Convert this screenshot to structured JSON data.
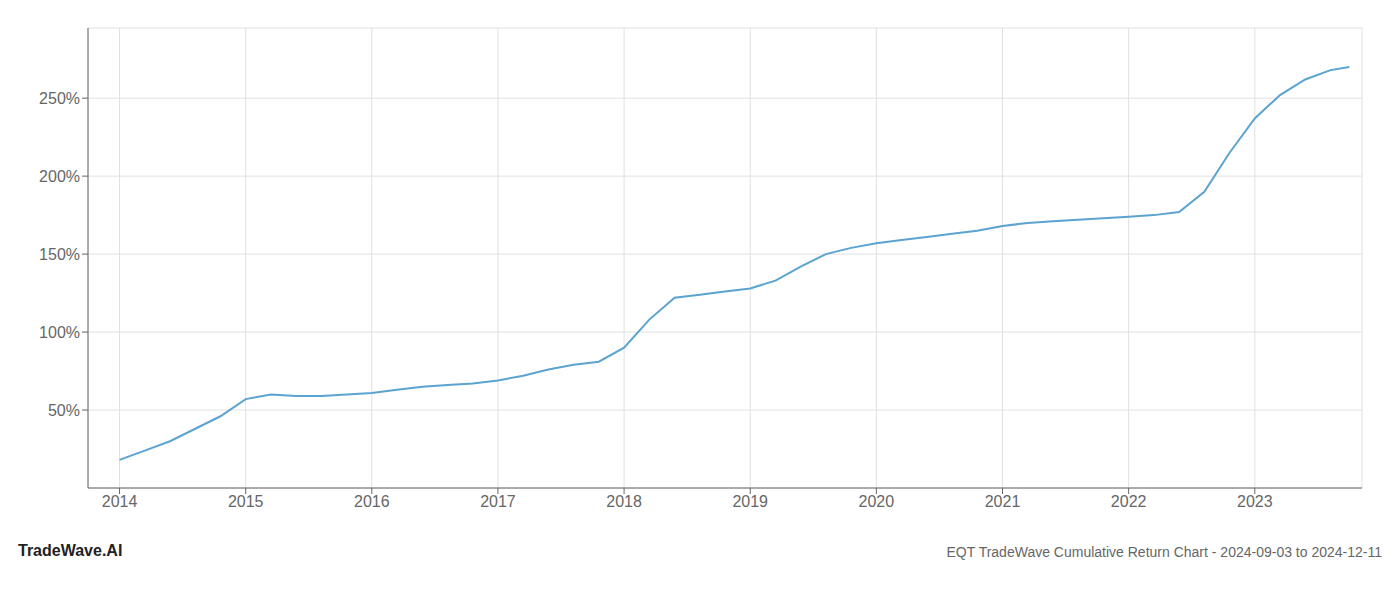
{
  "chart_data": {
    "type": "line",
    "title": "EQT TradeWave Cumulative Return Chart - 2024-09-03 to 2024-12-11",
    "annotations": [
      "TradeWave.AI"
    ],
    "x": [
      2014.0,
      2014.2,
      2014.4,
      2014.6,
      2014.8,
      2015.0,
      2015.2,
      2015.4,
      2015.6,
      2015.8,
      2016.0,
      2016.2,
      2016.4,
      2016.6,
      2016.8,
      2017.0,
      2017.2,
      2017.4,
      2017.6,
      2017.8,
      2018.0,
      2018.2,
      2018.4,
      2018.6,
      2018.8,
      2019.0,
      2019.2,
      2019.4,
      2019.6,
      2019.8,
      2020.0,
      2020.2,
      2020.4,
      2020.6,
      2020.8,
      2021.0,
      2021.2,
      2021.4,
      2021.6,
      2021.8,
      2022.0,
      2022.2,
      2022.4,
      2022.6,
      2022.8,
      2023.0,
      2023.2,
      2023.4,
      2023.6,
      2023.75
    ],
    "values": [
      18,
      24,
      30,
      38,
      46,
      57,
      60,
      59,
      59,
      60,
      61,
      63,
      65,
      66,
      67,
      69,
      72,
      76,
      79,
      81,
      90,
      108,
      122,
      124,
      126,
      128,
      133,
      142,
      150,
      154,
      157,
      159,
      161,
      163,
      165,
      168,
      170,
      171,
      172,
      173,
      174,
      175,
      177,
      190,
      215,
      237,
      252,
      262,
      268,
      270
    ],
    "color": "#5ba3d0",
    "xlim": [
      2013.75,
      2023.85
    ],
    "ylim": [
      0,
      295
    ],
    "xticks": [
      2014,
      2015,
      2016,
      2017,
      2018,
      2019,
      2020,
      2021,
      2022,
      2023
    ],
    "yticks": [
      {
        "value": 50,
        "label": "50%"
      },
      {
        "value": 100,
        "label": "100%"
      },
      {
        "value": 150,
        "label": "150%"
      },
      {
        "value": 200,
        "label": "200%"
      },
      {
        "value": 250,
        "label": "250%"
      }
    ],
    "grid": true
  }
}
